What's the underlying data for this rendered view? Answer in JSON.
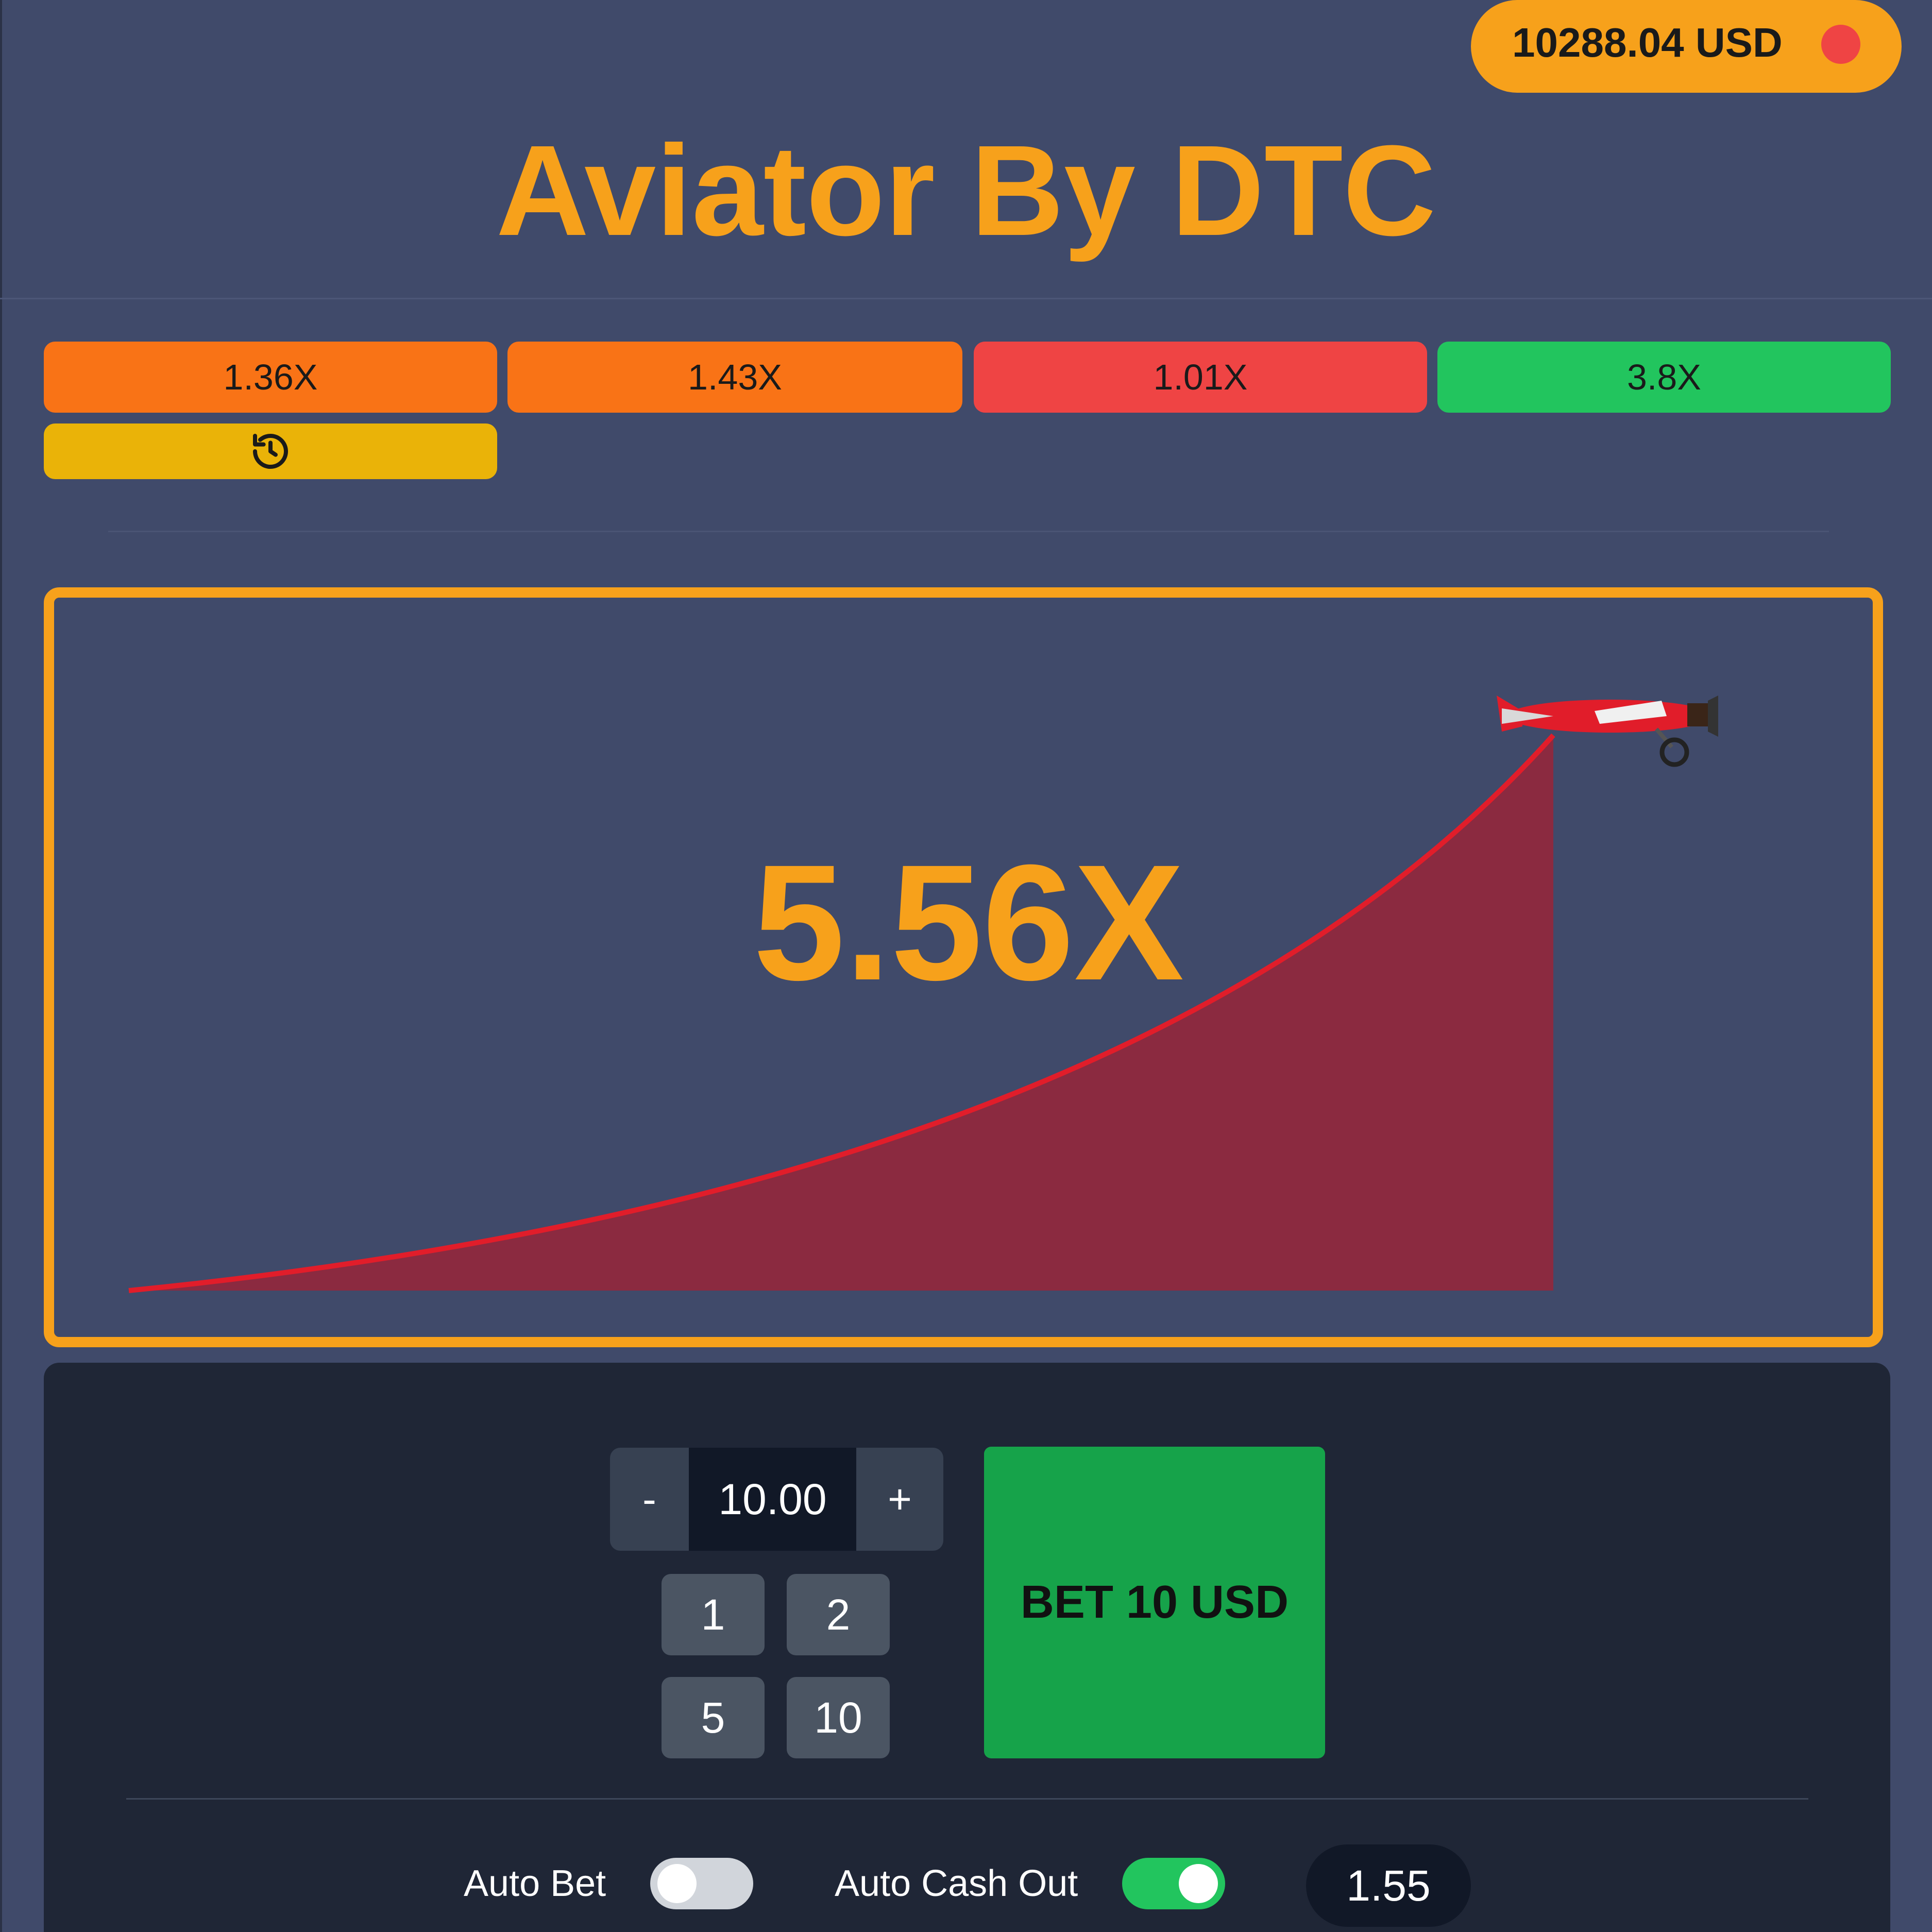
{
  "header": {
    "balance": "10288.04 USD",
    "title": "Aviator By DTC"
  },
  "history": {
    "items": [
      {
        "label": "1.36X",
        "color": "#f97316"
      },
      {
        "label": "1.43X",
        "color": "#f97316"
      },
      {
        "label": "1.01X",
        "color": "#ef4444"
      },
      {
        "label": "3.8X",
        "color": "#22c55e"
      }
    ],
    "history_icon": "history-icon"
  },
  "game": {
    "multiplier": "5.56X",
    "curve_color": "#e11d2a",
    "area_color": "#8b2a40",
    "plane_icon": "airplane-icon"
  },
  "bet": {
    "minus_label": "-",
    "amount": "10.00",
    "plus_label": "+",
    "quick_amounts": [
      "1",
      "2",
      "5",
      "10"
    ],
    "bet_button_label": "BET 10 USD"
  },
  "auto": {
    "auto_bet_label": "Auto Bet",
    "auto_bet_on": false,
    "auto_cashout_label": "Auto Cash Out",
    "auto_cashout_on": true,
    "cashout_value": "1.55"
  },
  "colors": {
    "accent": "#f7a11b",
    "background": "#404a6a",
    "panel": "#1f2636",
    "bet_green": "#16a34a"
  }
}
